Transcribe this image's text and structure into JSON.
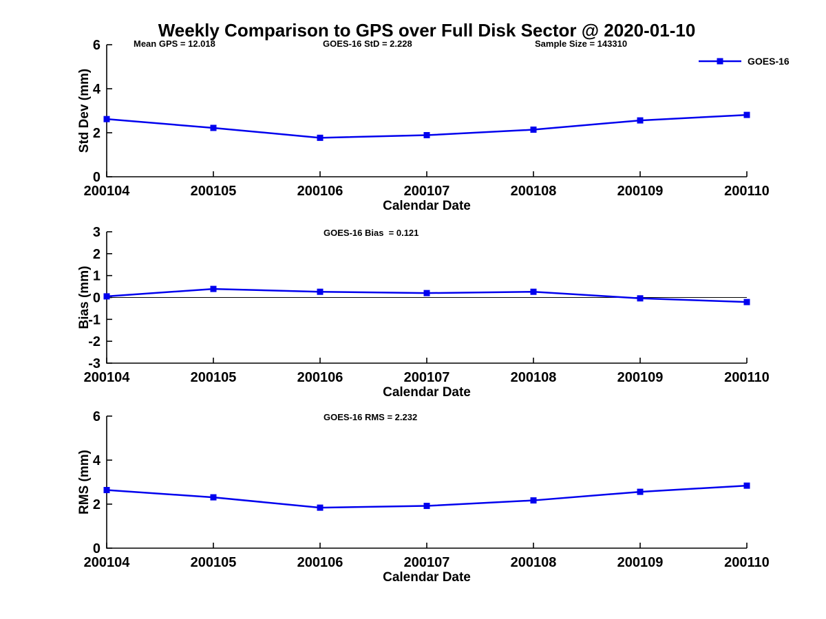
{
  "figure": {
    "title": "Weekly Comparison to GPS over Full Disk Sector @ 2020-01-10",
    "legend": {
      "label": "GOES-16",
      "color": "#0000EE"
    },
    "colors": {
      "series": "#0000EE",
      "axis": "#000000",
      "text": "#000000"
    }
  },
  "chart_data": [
    {
      "type": "line",
      "ylabel": "Std Dev (mm)",
      "xlabel": "Calendar Date",
      "ylim": [
        0,
        6
      ],
      "yticks": [
        0,
        2,
        4,
        6
      ],
      "grid": false,
      "legend_position": "top-right-outside",
      "categories": [
        "200104",
        "200105",
        "200106",
        "200107",
        "200108",
        "200109",
        "200110"
      ],
      "series": [
        {
          "name": "GOES-16",
          "color": "#0000EE",
          "marker": "square",
          "values": [
            2.62,
            2.22,
            1.77,
            1.89,
            2.14,
            2.56,
            2.81
          ]
        }
      ],
      "annotations": [
        {
          "text": "Mean GPS = 12.018"
        },
        {
          "text": "GOES-16 StD = 2.228"
        },
        {
          "text": "Sample Size = 143310"
        }
      ]
    },
    {
      "type": "line",
      "ylabel": "Bias (mm)",
      "xlabel": "Calendar Date",
      "ylim": [
        -3,
        3
      ],
      "yticks": [
        -3,
        -2,
        -1,
        0,
        1,
        2,
        3
      ],
      "zero_line": true,
      "grid": false,
      "categories": [
        "200104",
        "200105",
        "200106",
        "200107",
        "200108",
        "200109",
        "200110"
      ],
      "series": [
        {
          "name": "GOES-16",
          "color": "#0000EE",
          "marker": "square",
          "values": [
            0.05,
            0.39,
            0.26,
            0.2,
            0.26,
            -0.04,
            -0.21
          ]
        }
      ],
      "annotations": [
        {
          "text": "GOES-16 Bias  = 0.121"
        }
      ]
    },
    {
      "type": "line",
      "ylabel": "RMS (mm)",
      "xlabel": "Calendar Date",
      "ylim": [
        0,
        6
      ],
      "yticks": [
        0,
        2,
        4,
        6
      ],
      "grid": false,
      "categories": [
        "200104",
        "200105",
        "200106",
        "200107",
        "200108",
        "200109",
        "200110"
      ],
      "series": [
        {
          "name": "GOES-16",
          "color": "#0000EE",
          "marker": "square",
          "values": [
            2.64,
            2.31,
            1.84,
            1.92,
            2.17,
            2.56,
            2.84
          ]
        }
      ],
      "annotations": [
        {
          "text": "GOES-16 RMS = 2.232"
        }
      ]
    }
  ]
}
